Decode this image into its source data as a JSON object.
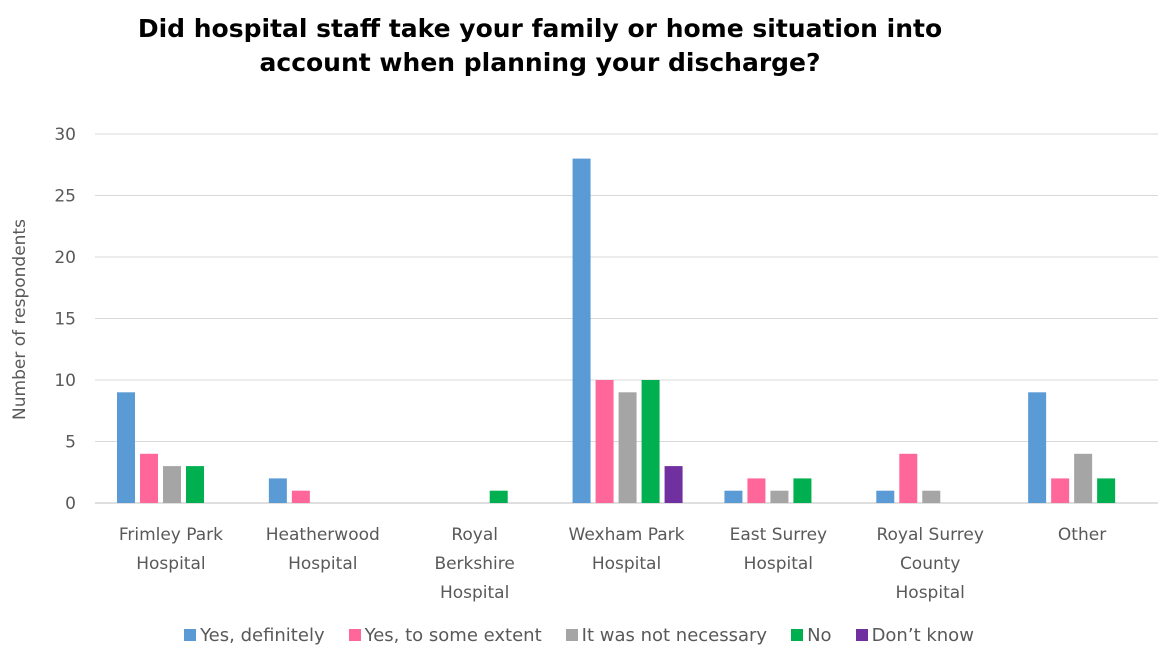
{
  "chart_data": {
    "type": "bar",
    "title_lines": [
      "Did hospital staff take your family or home situation into",
      "account when planning your discharge?"
    ],
    "ylabel": "Number of respondents",
    "ylim": [
      0,
      30
    ],
    "yticks": [
      0,
      5,
      10,
      15,
      20,
      25,
      30
    ],
    "grid": true,
    "legend_position": "bottom",
    "categories": [
      [
        "Frimley Park",
        "Hospital"
      ],
      [
        "Heatherwood",
        "Hospital"
      ],
      [
        "Royal",
        "Berkshire",
        "Hospital"
      ],
      [
        "Wexham Park",
        "Hospital"
      ],
      [
        "East Surrey",
        "Hospital"
      ],
      [
        "Royal Surrey",
        "County",
        "Hospital"
      ],
      [
        "Other"
      ]
    ],
    "series": [
      {
        "name": "Yes, definitely",
        "color": "#5b9bd5",
        "values": [
          9,
          2,
          0,
          28,
          1,
          1,
          9
        ]
      },
      {
        "name": "Yes, to some extent",
        "color": "#ff6699",
        "values": [
          4,
          1,
          0,
          10,
          2,
          4,
          2
        ]
      },
      {
        "name": "It was not necessary",
        "color": "#a5a5a5",
        "values": [
          3,
          0,
          0,
          9,
          1,
          1,
          4
        ]
      },
      {
        "name": "No",
        "color": "#00b050",
        "values": [
          3,
          0,
          1,
          10,
          2,
          0,
          2
        ]
      },
      {
        "name": "Don’t know",
        "color": "#7030a0",
        "values": [
          0,
          0,
          0,
          3,
          0,
          0,
          0
        ]
      }
    ]
  }
}
